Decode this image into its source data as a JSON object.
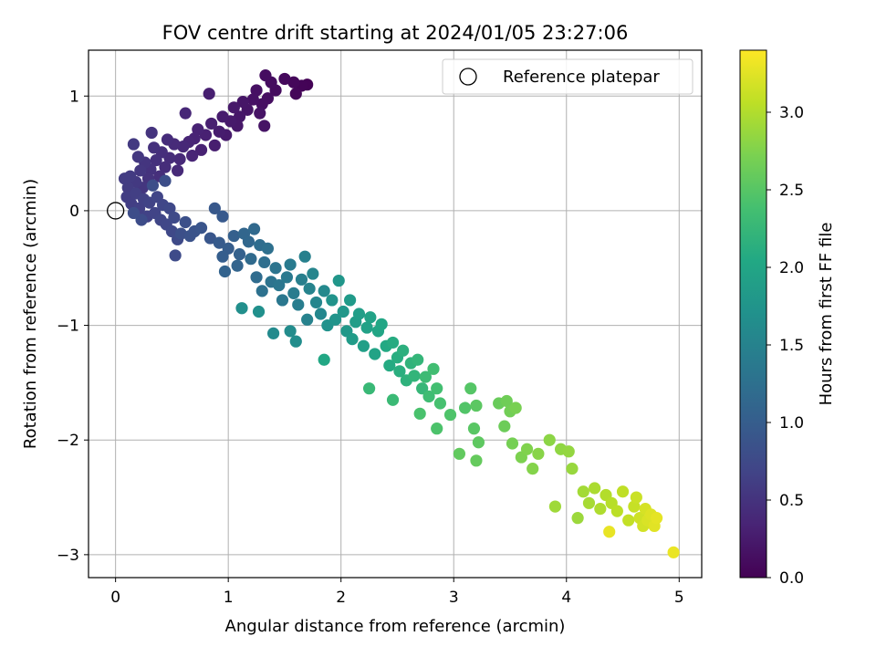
{
  "chart_data": {
    "type": "scatter",
    "title": "FOV centre drift starting at 2024/01/05 23:27:06",
    "xlabel": "Angular distance from reference (arcmin)",
    "ylabel": "Rotation from reference (arcmin)",
    "xlim": [
      -0.24,
      5.2
    ],
    "ylim": [
      -3.2,
      1.4
    ],
    "x_ticks": [
      0,
      1,
      2,
      3,
      4,
      5
    ],
    "x_tick_labels": [
      "0",
      "1",
      "2",
      "3",
      "4",
      "5"
    ],
    "y_ticks": [
      -3,
      -2,
      -1,
      0,
      1
    ],
    "y_tick_labels": [
      "−3",
      "−2",
      "−1",
      "0",
      "1"
    ],
    "grid": true,
    "legend": {
      "placement": "top-right",
      "entries": [
        {
          "label": "Reference platepar",
          "marker": "open-circle"
        }
      ]
    },
    "reference_point": {
      "x": 0,
      "y": 0
    },
    "colorbar": {
      "label": "Hours from first FF file",
      "colormap": "viridis",
      "range": [
        0,
        3.4
      ],
      "ticks": [
        0,
        0.5,
        1,
        1.5,
        2,
        2.5,
        3
      ],
      "tick_labels": [
        "0.0",
        "0.5",
        "1.0",
        "1.5",
        "2.0",
        "2.5",
        "3.0"
      ]
    },
    "colormap_stops": [
      "#440154",
      "#482475",
      "#414487",
      "#355f8d",
      "#2a788e",
      "#21918c",
      "#22a884",
      "#44bf70",
      "#7ad151",
      "#bddf26",
      "#fde725"
    ],
    "series": [
      {
        "columns": [
          "x",
          "y",
          "hours"
        ],
        "points": [
          [
            1.7,
            1.1,
            0.02
          ],
          [
            1.65,
            1.09,
            0.03
          ],
          [
            1.6,
            1.02,
            0.05
          ],
          [
            1.58,
            1.12,
            0.06
          ],
          [
            1.5,
            1.15,
            0.08
          ],
          [
            1.42,
            1.05,
            0.1
          ],
          [
            1.38,
            1.12,
            0.11
          ],
          [
            1.33,
            1.18,
            0.12
          ],
          [
            1.35,
            0.98,
            0.13
          ],
          [
            1.3,
            0.93,
            0.14
          ],
          [
            1.25,
            1.05,
            0.15
          ],
          [
            1.22,
            0.97,
            0.16
          ],
          [
            1.28,
            0.85,
            0.17
          ],
          [
            1.32,
            0.74,
            0.18
          ],
          [
            1.17,
            0.88,
            0.19
          ],
          [
            1.13,
            0.95,
            0.2
          ],
          [
            1.1,
            0.82,
            0.21
          ],
          [
            1.08,
            0.74,
            0.22
          ],
          [
            1.05,
            0.9,
            0.23
          ],
          [
            1.02,
            0.78,
            0.24
          ],
          [
            0.98,
            0.66,
            0.25
          ],
          [
            0.95,
            0.82,
            0.26
          ],
          [
            0.92,
            0.69,
            0.27
          ],
          [
            0.88,
            0.57,
            0.28
          ],
          [
            0.83,
            1.02,
            0.29
          ],
          [
            0.85,
            0.76,
            0.3
          ],
          [
            0.8,
            0.66,
            0.31
          ],
          [
            0.76,
            0.53,
            0.32
          ],
          [
            0.73,
            0.71,
            0.33
          ],
          [
            0.7,
            0.63,
            0.34
          ],
          [
            0.68,
            0.48,
            0.35
          ],
          [
            0.65,
            0.6,
            0.36
          ],
          [
            0.62,
            0.85,
            0.37
          ],
          [
            0.6,
            0.56,
            0.38
          ],
          [
            0.57,
            0.45,
            0.39
          ],
          [
            0.55,
            0.35,
            0.4
          ],
          [
            0.52,
            0.58,
            0.41
          ],
          [
            0.48,
            0.46,
            0.42
          ],
          [
            0.46,
            0.62,
            0.43
          ],
          [
            0.44,
            0.38,
            0.44
          ],
          [
            0.41,
            0.51,
            0.45
          ],
          [
            0.39,
            0.3,
            0.46
          ],
          [
            0.36,
            0.44,
            0.47
          ],
          [
            0.34,
            0.55,
            0.48
          ],
          [
            0.31,
            0.36,
            0.49
          ],
          [
            0.29,
            0.28,
            0.5
          ],
          [
            0.32,
            0.68,
            0.51
          ],
          [
            0.26,
            0.42,
            0.52
          ],
          [
            0.24,
            0.2,
            0.53
          ],
          [
            0.22,
            0.35,
            0.54
          ],
          [
            0.2,
            0.47,
            0.55
          ],
          [
            0.18,
            0.25,
            0.56
          ],
          [
            0.16,
            0.58,
            0.57
          ],
          [
            0.13,
            0.3,
            0.58
          ],
          [
            0.11,
            0.2,
            0.59
          ],
          [
            0.08,
            0.28,
            0.6
          ],
          [
            0.1,
            0.12,
            0.61
          ],
          [
            0.14,
            0.06,
            0.62
          ],
          [
            0.18,
            0.15,
            0.63
          ],
          [
            0.21,
            0.02,
            0.64
          ],
          [
            0.25,
            0.1,
            0.65
          ],
          [
            0.28,
            -0.05,
            0.66
          ],
          [
            0.3,
            0.07,
            0.67
          ],
          [
            0.35,
            -0.02,
            0.68
          ],
          [
            0.37,
            0.12,
            0.69
          ],
          [
            0.4,
            -0.08,
            0.7
          ],
          [
            0.42,
            0.05,
            0.71
          ],
          [
            0.45,
            -0.12,
            0.72
          ],
          [
            0.48,
            0.02,
            0.73
          ],
          [
            0.5,
            -0.18,
            0.74
          ],
          [
            0.52,
            -0.06,
            0.75
          ],
          [
            0.55,
            -0.25,
            0.76
          ],
          [
            0.53,
            -0.39,
            0.77
          ],
          [
            0.23,
            -0.08,
            0.78
          ],
          [
            0.16,
            -0.02,
            0.79
          ],
          [
            0.33,
            0.22,
            0.8
          ],
          [
            0.44,
            0.26,
            0.81
          ],
          [
            0.58,
            -0.2,
            0.82
          ],
          [
            0.62,
            -0.1,
            0.83
          ],
          [
            0.66,
            -0.22,
            0.85
          ],
          [
            0.7,
            -0.18,
            0.87
          ],
          [
            0.76,
            -0.15,
            0.89
          ],
          [
            0.84,
            -0.24,
            0.91
          ],
          [
            0.88,
            0.02,
            0.93
          ],
          [
            0.95,
            -0.05,
            0.95
          ],
          [
            0.92,
            -0.28,
            0.97
          ],
          [
            1.0,
            -0.33,
            0.99
          ],
          [
            0.95,
            -0.4,
            1.01
          ],
          [
            1.05,
            -0.22,
            1.03
          ],
          [
            1.1,
            -0.38,
            1.05
          ],
          [
            0.97,
            -0.53,
            1.07
          ],
          [
            1.08,
            -0.48,
            1.09
          ],
          [
            1.14,
            -0.2,
            1.11
          ],
          [
            1.18,
            -0.27,
            1.13
          ],
          [
            1.23,
            -0.16,
            1.15
          ],
          [
            1.2,
            -0.42,
            1.17
          ],
          [
            1.25,
            -0.58,
            1.19
          ],
          [
            1.28,
            -0.3,
            1.21
          ],
          [
            1.32,
            -0.45,
            1.23
          ],
          [
            1.35,
            -0.33,
            1.25
          ],
          [
            1.3,
            -0.7,
            1.27
          ],
          [
            1.38,
            -0.62,
            1.29
          ],
          [
            1.42,
            -0.5,
            1.31
          ],
          [
            1.45,
            -0.65,
            1.33
          ],
          [
            1.48,
            -0.78,
            1.35
          ],
          [
            1.52,
            -0.58,
            1.37
          ],
          [
            1.55,
            -0.47,
            1.39
          ],
          [
            1.58,
            -0.72,
            1.41
          ],
          [
            1.62,
            -0.82,
            1.43
          ],
          [
            1.65,
            -0.6,
            1.45
          ],
          [
            1.68,
            -0.4,
            1.47
          ],
          [
            1.7,
            -0.95,
            1.49
          ],
          [
            1.72,
            -0.68,
            1.51
          ],
          [
            1.75,
            -0.55,
            1.53
          ],
          [
            1.78,
            -0.8,
            1.55
          ],
          [
            1.82,
            -0.9,
            1.57
          ],
          [
            1.85,
            -0.7,
            1.59
          ],
          [
            1.4,
            -1.07,
            1.61
          ],
          [
            1.55,
            -1.05,
            1.63
          ],
          [
            1.6,
            -1.14,
            1.65
          ],
          [
            1.12,
            -0.85,
            1.67
          ],
          [
            1.27,
            -0.88,
            1.69
          ],
          [
            1.88,
            -1.0,
            1.71
          ],
          [
            1.92,
            -0.78,
            1.73
          ],
          [
            1.95,
            -0.95,
            1.75
          ],
          [
            1.98,
            -0.61,
            1.77
          ],
          [
            2.02,
            -0.88,
            1.79
          ],
          [
            2.05,
            -1.05,
            1.81
          ],
          [
            2.08,
            -0.78,
            1.83
          ],
          [
            2.1,
            -1.12,
            1.85
          ],
          [
            2.13,
            -0.97,
            1.87
          ],
          [
            2.16,
            -0.9,
            1.89
          ],
          [
            2.2,
            -1.18,
            1.91
          ],
          [
            2.23,
            -1.02,
            1.93
          ],
          [
            2.26,
            -0.93,
            1.95
          ],
          [
            2.3,
            -1.25,
            1.97
          ],
          [
            2.33,
            -1.05,
            1.99
          ],
          [
            2.36,
            -0.99,
            2.01
          ],
          [
            1.85,
            -1.3,
            2.03
          ],
          [
            2.4,
            -1.18,
            2.05
          ],
          [
            2.43,
            -1.35,
            2.07
          ],
          [
            2.46,
            -1.15,
            2.09
          ],
          [
            2.5,
            -1.28,
            2.11
          ],
          [
            2.52,
            -1.4,
            2.13
          ],
          [
            2.55,
            -1.22,
            2.15
          ],
          [
            2.58,
            -1.48,
            2.17
          ],
          [
            2.62,
            -1.33,
            2.19
          ],
          [
            2.65,
            -1.44,
            2.21
          ],
          [
            2.68,
            -1.3,
            2.23
          ],
          [
            2.72,
            -1.55,
            2.25
          ],
          [
            2.25,
            -1.55,
            2.27
          ],
          [
            2.46,
            -1.65,
            2.29
          ],
          [
            2.75,
            -1.45,
            2.31
          ],
          [
            2.78,
            -1.62,
            2.33
          ],
          [
            2.82,
            -1.38,
            2.35
          ],
          [
            2.85,
            -1.55,
            2.37
          ],
          [
            2.88,
            -1.68,
            2.39
          ],
          [
            2.7,
            -1.77,
            2.41
          ],
          [
            2.85,
            -1.9,
            2.43
          ],
          [
            2.97,
            -1.78,
            2.45
          ],
          [
            3.1,
            -1.72,
            2.47
          ],
          [
            3.15,
            -1.55,
            2.49
          ],
          [
            3.18,
            -1.9,
            2.51
          ],
          [
            3.2,
            -1.7,
            2.53
          ],
          [
            3.22,
            -2.02,
            2.55
          ],
          [
            3.05,
            -2.12,
            2.57
          ],
          [
            3.2,
            -2.18,
            2.59
          ],
          [
            3.4,
            -1.68,
            2.61
          ],
          [
            3.45,
            -1.88,
            2.63
          ],
          [
            3.47,
            -1.66,
            2.65
          ],
          [
            3.5,
            -1.75,
            2.67
          ],
          [
            3.52,
            -2.03,
            2.69
          ],
          [
            3.55,
            -1.72,
            2.71
          ],
          [
            3.6,
            -2.15,
            2.73
          ],
          [
            3.65,
            -2.08,
            2.75
          ],
          [
            3.7,
            -2.25,
            2.77
          ],
          [
            3.75,
            -2.12,
            2.79
          ],
          [
            3.85,
            -2.0,
            2.81
          ],
          [
            3.95,
            -2.08,
            2.83
          ],
          [
            4.02,
            -2.1,
            2.85
          ],
          [
            4.05,
            -2.25,
            2.87
          ],
          [
            4.1,
            -2.68,
            2.89
          ],
          [
            3.9,
            -2.58,
            2.91
          ],
          [
            4.15,
            -2.45,
            2.93
          ],
          [
            4.2,
            -2.55,
            2.95
          ],
          [
            4.25,
            -2.42,
            2.97
          ],
          [
            4.3,
            -2.6,
            2.99
          ],
          [
            4.35,
            -2.48,
            3.01
          ],
          [
            4.4,
            -2.55,
            3.03
          ],
          [
            4.45,
            -2.62,
            3.05
          ],
          [
            4.5,
            -2.45,
            3.07
          ],
          [
            4.55,
            -2.7,
            3.09
          ],
          [
            4.6,
            -2.58,
            3.11
          ],
          [
            4.62,
            -2.5,
            3.13
          ],
          [
            4.65,
            -2.68,
            3.15
          ],
          [
            4.68,
            -2.75,
            3.17
          ],
          [
            4.7,
            -2.6,
            3.19
          ],
          [
            4.72,
            -2.7,
            3.21
          ],
          [
            4.75,
            -2.65,
            3.23
          ],
          [
            4.78,
            -2.75,
            3.25
          ],
          [
            4.8,
            -2.68,
            3.27
          ],
          [
            4.38,
            -2.8,
            3.29
          ],
          [
            4.95,
            -2.98,
            3.3
          ]
        ]
      }
    ]
  }
}
